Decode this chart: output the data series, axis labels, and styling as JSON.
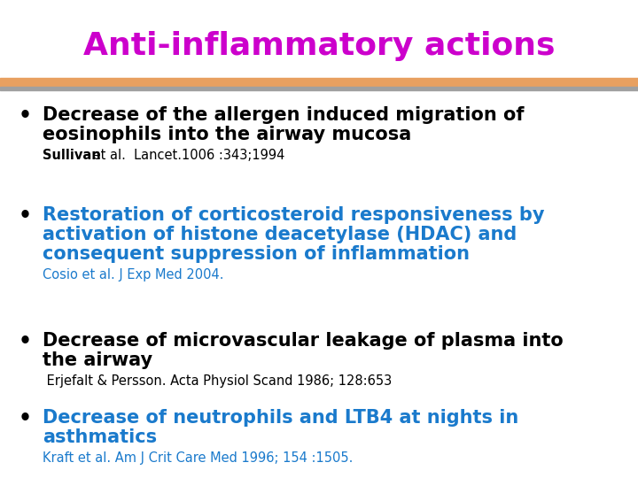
{
  "title": "Anti-inflammatory actions",
  "title_color": "#CC00CC",
  "title_fontsize": 26,
  "title_fontweight": "bold",
  "background_color": "#FFFFFF",
  "divider_color_top": "#E8A060",
  "divider_color_bottom": "#A0A0A0",
  "bullet_dot_color": "#000000",
  "items": [
    {
      "bullet_lines": [
        "Decrease of the allergen induced migration of",
        "eosinophils into the airway mucosa"
      ],
      "ref_bold": "Sullivan",
      "ref_rest": " et al.  Lancet.1006 :343;1994",
      "text_color": "#000000",
      "ref_color": "#000000",
      "text_fontsize": 15,
      "ref_fontsize": 10.5,
      "ref_bold_weight": "bold",
      "ref_rest_weight": "normal"
    },
    {
      "bullet_lines": [
        "Restoration of corticosteroid responsiveness by",
        "activation of histone deacetylase (HDAC) and",
        "consequent suppression of inflammation"
      ],
      "ref_bold": null,
      "ref_rest": "Cosio et al. J Exp Med 2004.",
      "text_color": "#1a7acc",
      "ref_color": "#1a7acc",
      "text_fontsize": 15,
      "ref_fontsize": 10.5,
      "ref_bold_weight": "normal",
      "ref_rest_weight": "normal"
    },
    {
      "bullet_lines": [
        "Decrease of microvascular leakage of plasma into",
        "the airway"
      ],
      "ref_bold": null,
      "ref_rest": " Erjefalt & Persson. Acta Physiol Scand 1986; 128:653",
      "text_color": "#000000",
      "ref_color": "#000000",
      "text_fontsize": 15,
      "ref_fontsize": 10.5,
      "ref_bold_weight": "normal",
      "ref_rest_weight": "normal"
    },
    {
      "bullet_lines": [
        "Decrease of neutrophils and LTB4 at nights in",
        "asthmatics"
      ],
      "ref_bold": null,
      "ref_rest": "Kraft et al. Am J Crit Care Med 1996; 154 :1505.",
      "text_color": "#1a7acc",
      "ref_color": "#1a7acc",
      "text_fontsize": 15,
      "ref_fontsize": 10.5,
      "ref_bold_weight": "normal",
      "ref_rest_weight": "normal"
    }
  ],
  "fig_width": 7.2,
  "fig_height": 5.4,
  "dpi": 100
}
